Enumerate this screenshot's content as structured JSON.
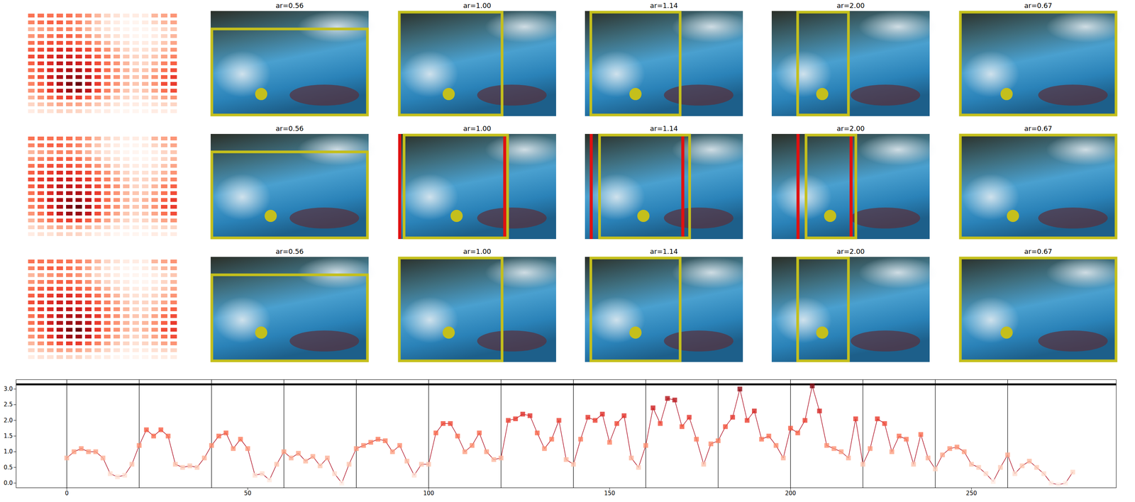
{
  "figure": {
    "heatmap_cells": [
      [
        0.5,
        0.5,
        0.5,
        0.5,
        0.5,
        0.45,
        0.4,
        0.3,
        0.2,
        0.15,
        0.1,
        0.1,
        0.1,
        0.3,
        0.35,
        0.4
      ],
      [
        0.45,
        0.5,
        0.55,
        0.55,
        0.5,
        0.45,
        0.35,
        0.25,
        0.15,
        0.1,
        0.05,
        0.05,
        0.1,
        0.2,
        0.3,
        0.35
      ],
      [
        0.3,
        0.35,
        0.4,
        0.45,
        0.45,
        0.4,
        0.3,
        0.2,
        0.15,
        0.1,
        0.05,
        0.05,
        0.05,
        0.1,
        0.2,
        0.25
      ],
      [
        0.4,
        0.45,
        0.5,
        0.55,
        0.55,
        0.5,
        0.4,
        0.3,
        0.2,
        0.15,
        0.1,
        0.05,
        0.05,
        0.1,
        0.2,
        0.3
      ],
      [
        0.5,
        0.55,
        0.6,
        0.6,
        0.6,
        0.55,
        0.5,
        0.4,
        0.3,
        0.2,
        0.15,
        0.1,
        0.1,
        0.15,
        0.25,
        0.35
      ],
      [
        0.55,
        0.6,
        0.65,
        0.7,
        0.7,
        0.65,
        0.6,
        0.5,
        0.4,
        0.3,
        0.2,
        0.15,
        0.15,
        0.2,
        0.3,
        0.4
      ],
      [
        0.6,
        0.65,
        0.7,
        0.75,
        0.75,
        0.7,
        0.65,
        0.55,
        0.45,
        0.35,
        0.25,
        0.2,
        0.2,
        0.25,
        0.35,
        0.45
      ],
      [
        0.55,
        0.65,
        0.7,
        0.8,
        0.8,
        0.75,
        0.7,
        0.6,
        0.5,
        0.4,
        0.3,
        0.2,
        0.2,
        0.3,
        0.45,
        0.55
      ],
      [
        0.5,
        0.6,
        0.7,
        0.8,
        0.85,
        0.85,
        0.75,
        0.65,
        0.5,
        0.4,
        0.3,
        0.25,
        0.25,
        0.35,
        0.5,
        0.6
      ],
      [
        0.5,
        0.6,
        0.75,
        0.85,
        0.9,
        0.9,
        0.8,
        0.65,
        0.5,
        0.4,
        0.3,
        0.25,
        0.3,
        0.4,
        0.55,
        0.65
      ],
      [
        0.45,
        0.55,
        0.7,
        0.85,
        0.95,
        1,
        0.85,
        0.65,
        0.5,
        0.4,
        0.3,
        0.25,
        0.3,
        0.4,
        0.6,
        0.65
      ],
      [
        0.4,
        0.5,
        0.65,
        0.8,
        0.9,
        0.9,
        0.8,
        0.6,
        0.45,
        0.35,
        0.25,
        0.2,
        0.25,
        0.35,
        0.5,
        0.6
      ],
      [
        0.3,
        0.4,
        0.5,
        0.6,
        0.65,
        0.65,
        0.55,
        0.45,
        0.35,
        0.25,
        0.2,
        0.15,
        0.2,
        0.25,
        0.35,
        0.4
      ],
      [
        0.2,
        0.25,
        0.3,
        0.35,
        0.35,
        0.35,
        0.3,
        0.25,
        0.2,
        0.15,
        0.1,
        0.1,
        0.1,
        0.15,
        0.2,
        0.2
      ],
      [
        0.1,
        0.15,
        0.15,
        0.2,
        0.2,
        0.2,
        0.15,
        0.1,
        0.1,
        0.05,
        0.05,
        0.05,
        0.05,
        0.1,
        0.1,
        0.1
      ]
    ],
    "rows": [
      {
        "panels": [
          {
            "title": "ar=0.56",
            "box": [
              0,
              0.16,
              1,
              1
            ],
            "point": [
              0.32,
              0.79
            ]
          },
          {
            "title": "ar=1.00",
            "box": [
              0,
              0,
              0.665,
              1
            ],
            "point": [
              0.32,
              0.79
            ]
          },
          {
            "title": "ar=1.14",
            "box": [
              0.03,
              0,
              0.61,
              1
            ],
            "point": [
              0.32,
              0.79
            ]
          },
          {
            "title": "ar=2.00",
            "box": [
              0.157,
              0,
              0.493,
              1
            ],
            "point": [
              0.32,
              0.79
            ]
          },
          {
            "title": "ar=0.67",
            "box": [
              0,
              0,
              1,
              1
            ],
            "point": [
              0.3,
              0.79
            ]
          }
        ]
      },
      {
        "panels": [
          {
            "title": "ar=0.56",
            "box": [
              0,
              0.16,
              1,
              1
            ],
            "point": [
              0.38,
              0.78
            ]
          },
          {
            "title": "ar=1.00",
            "box": [
              0.03,
              0,
              0.7,
              1
            ],
            "red_box": [
              0,
              0,
              0.665,
              1
            ],
            "point": [
              0.37,
              0.78
            ]
          },
          {
            "title": "ar=1.14",
            "box": [
              0.085,
              0,
              0.67,
              1
            ],
            "red_box": [
              0.03,
              0,
              0.61,
              1
            ],
            "point": [
              0.37,
              0.78
            ]
          },
          {
            "title": "ar=2.00",
            "box": [
              0.21,
              0,
              0.54,
              1
            ],
            "red_box": [
              0.157,
              0,
              0.493,
              1
            ],
            "point": [
              0.37,
              0.78
            ]
          },
          {
            "title": "ar=0.67",
            "box": [
              0,
              0,
              1,
              1
            ],
            "point": [
              0.34,
              0.78
            ]
          }
        ]
      },
      {
        "panels": [
          {
            "title": "ar=0.56",
            "box": [
              0,
              0.16,
              1,
              1
            ],
            "point": [
              0.32,
              0.72
            ]
          },
          {
            "title": "ar=1.00",
            "box": [
              0,
              0,
              0.665,
              1
            ],
            "point": [
              0.32,
              0.72
            ]
          },
          {
            "title": "ar=1.14",
            "box": [
              0.03,
              0,
              0.61,
              1
            ],
            "point": [
              0.32,
              0.72
            ]
          },
          {
            "title": "ar=2.00",
            "box": [
              0.157,
              0,
              0.493,
              1
            ],
            "point": [
              0.32,
              0.72
            ]
          },
          {
            "title": "ar=0.67",
            "box": [
              0,
              0,
              1,
              1
            ],
            "point": [
              0.3,
              0.72
            ]
          }
        ]
      }
    ]
  },
  "chart_data": {
    "type": "line",
    "marker": "square",
    "color": "#b2182b",
    "x": [
      0,
      2,
      4,
      6,
      8,
      10,
      12,
      14,
      16,
      18,
      20,
      22,
      24,
      26,
      28,
      30,
      32,
      34,
      36,
      38,
      40,
      42,
      44,
      46,
      48,
      50,
      52,
      54,
      56,
      58,
      60,
      62,
      64,
      66,
      68,
      70,
      72,
      74,
      76,
      78,
      80,
      82,
      84,
      86,
      88,
      90,
      92,
      94,
      96,
      98,
      100,
      102,
      104,
      106,
      108,
      110,
      112,
      114,
      116,
      118,
      120,
      122,
      124,
      126,
      128,
      130,
      132,
      134,
      136,
      138,
      140,
      142,
      144,
      146,
      148,
      150,
      152,
      154,
      156,
      158,
      160,
      162,
      164,
      166,
      168,
      170,
      172,
      174,
      176,
      178,
      180,
      182,
      184,
      186,
      188,
      190,
      192,
      194,
      196,
      198,
      200,
      202,
      204,
      206,
      208,
      210,
      212,
      214,
      216,
      218,
      220,
      222,
      224,
      226,
      228,
      230,
      232,
      234,
      236,
      238,
      240,
      242,
      244,
      246,
      248,
      250,
      252,
      254,
      256,
      258,
      260,
      262,
      264,
      266,
      268,
      270,
      272,
      274,
      276,
      278
    ],
    "values": [
      0.8,
      1.0,
      1.1,
      1.0,
      1.0,
      0.8,
      0.3,
      0.2,
      0.25,
      0.6,
      1.2,
      1.7,
      1.5,
      1.7,
      1.5,
      0.6,
      0.5,
      0.55,
      0.5,
      0.8,
      1.2,
      1.5,
      1.6,
      1.1,
      1.4,
      1.1,
      0.25,
      0.3,
      0.1,
      0.6,
      1.0,
      0.8,
      0.95,
      0.7,
      0.85,
      0.55,
      0.8,
      0.3,
      0.0,
      0.6,
      1.1,
      1.2,
      1.3,
      1.4,
      1.35,
      1.0,
      1.2,
      0.7,
      0.25,
      0.6,
      0.6,
      1.6,
      1.9,
      1.9,
      1.5,
      1.0,
      1.2,
      1.6,
      1.0,
      0.75,
      0.8,
      2.0,
      2.05,
      2.2,
      2.15,
      1.6,
      1.1,
      1.4,
      2.0,
      0.75,
      0.6,
      1.4,
      2.1,
      2.0,
      2.2,
      1.3,
      1.9,
      2.15,
      0.8,
      0.5,
      1.2,
      2.4,
      1.9,
      2.7,
      2.65,
      1.8,
      2.1,
      1.4,
      0.6,
      1.25,
      1.35,
      1.8,
      2.1,
      3.0,
      2.0,
      2.3,
      1.4,
      1.5,
      1.2,
      0.8,
      1.75,
      1.6,
      2.0,
      3.1,
      2.3,
      1.2,
      1.1,
      1.0,
      0.8,
      2.05,
      0.6,
      1.1,
      2.05,
      1.9,
      1.0,
      1.5,
      1.4,
      0.6,
      1.55,
      0.8,
      0.45,
      0.9,
      1.1,
      1.15,
      1.0,
      0.6,
      0.5,
      0.3,
      0.05,
      0.5,
      0.9,
      0.3,
      0.55,
      0.7,
      0.5,
      0.3,
      0.0,
      -0.05,
      0.0,
      0.35
    ],
    "reference_line": 3.15,
    "vlines": [
      0,
      20,
      40,
      60,
      80,
      100,
      120,
      140,
      160,
      180,
      200,
      220,
      240,
      260
    ],
    "xlim": [
      -14,
      290
    ],
    "xticks": [
      0,
      50,
      100,
      150,
      200,
      250
    ],
    "ylim": [
      -0.15,
      3.3
    ],
    "yticks": [
      {
        "value": 0,
        "label": "0.0"
      },
      {
        "value": 0.5,
        "label": "0.5"
      },
      {
        "value": 1,
        "label": "1.0"
      },
      {
        "value": 1.5,
        "label": "1.5"
      },
      {
        "value": 2,
        "label": "2.0"
      },
      {
        "value": 2.5,
        "label": "2.5"
      },
      {
        "value": 3,
        "label": "3.0"
      }
    ]
  }
}
